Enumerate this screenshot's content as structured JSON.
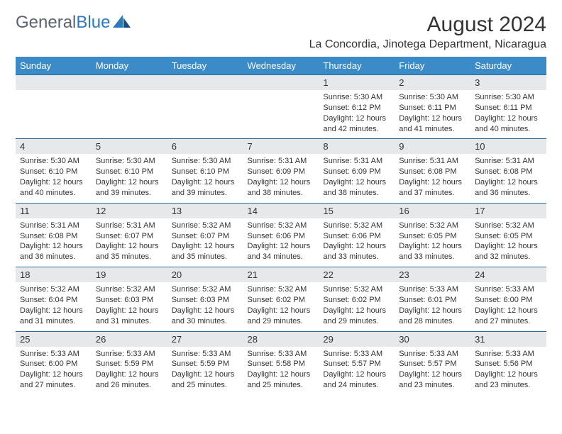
{
  "logo": {
    "text_gray": "General",
    "text_blue": "Blue"
  },
  "title": "August 2024",
  "location": "La Concordia, Jinotega Department, Nicaragua",
  "colors": {
    "header_bg": "#3b8bc8",
    "header_text": "#ffffff",
    "daynum_bg": "#e6e8ea",
    "daynum_border": "#2b6aa0",
    "body_text": "#333333",
    "logo_gray": "#5a6570",
    "logo_blue": "#2b7abf"
  },
  "day_headers": [
    "Sunday",
    "Monday",
    "Tuesday",
    "Wednesday",
    "Thursday",
    "Friday",
    "Saturday"
  ],
  "weeks": [
    [
      null,
      null,
      null,
      null,
      {
        "n": "1",
        "sr": "Sunrise: 5:30 AM",
        "ss": "Sunset: 6:12 PM",
        "dl": "Daylight: 12 hours and 42 minutes."
      },
      {
        "n": "2",
        "sr": "Sunrise: 5:30 AM",
        "ss": "Sunset: 6:11 PM",
        "dl": "Daylight: 12 hours and 41 minutes."
      },
      {
        "n": "3",
        "sr": "Sunrise: 5:30 AM",
        "ss": "Sunset: 6:11 PM",
        "dl": "Daylight: 12 hours and 40 minutes."
      }
    ],
    [
      {
        "n": "4",
        "sr": "Sunrise: 5:30 AM",
        "ss": "Sunset: 6:10 PM",
        "dl": "Daylight: 12 hours and 40 minutes."
      },
      {
        "n": "5",
        "sr": "Sunrise: 5:30 AM",
        "ss": "Sunset: 6:10 PM",
        "dl": "Daylight: 12 hours and 39 minutes."
      },
      {
        "n": "6",
        "sr": "Sunrise: 5:30 AM",
        "ss": "Sunset: 6:10 PM",
        "dl": "Daylight: 12 hours and 39 minutes."
      },
      {
        "n": "7",
        "sr": "Sunrise: 5:31 AM",
        "ss": "Sunset: 6:09 PM",
        "dl": "Daylight: 12 hours and 38 minutes."
      },
      {
        "n": "8",
        "sr": "Sunrise: 5:31 AM",
        "ss": "Sunset: 6:09 PM",
        "dl": "Daylight: 12 hours and 38 minutes."
      },
      {
        "n": "9",
        "sr": "Sunrise: 5:31 AM",
        "ss": "Sunset: 6:08 PM",
        "dl": "Daylight: 12 hours and 37 minutes."
      },
      {
        "n": "10",
        "sr": "Sunrise: 5:31 AM",
        "ss": "Sunset: 6:08 PM",
        "dl": "Daylight: 12 hours and 36 minutes."
      }
    ],
    [
      {
        "n": "11",
        "sr": "Sunrise: 5:31 AM",
        "ss": "Sunset: 6:08 PM",
        "dl": "Daylight: 12 hours and 36 minutes."
      },
      {
        "n": "12",
        "sr": "Sunrise: 5:31 AM",
        "ss": "Sunset: 6:07 PM",
        "dl": "Daylight: 12 hours and 35 minutes."
      },
      {
        "n": "13",
        "sr": "Sunrise: 5:32 AM",
        "ss": "Sunset: 6:07 PM",
        "dl": "Daylight: 12 hours and 35 minutes."
      },
      {
        "n": "14",
        "sr": "Sunrise: 5:32 AM",
        "ss": "Sunset: 6:06 PM",
        "dl": "Daylight: 12 hours and 34 minutes."
      },
      {
        "n": "15",
        "sr": "Sunrise: 5:32 AM",
        "ss": "Sunset: 6:06 PM",
        "dl": "Daylight: 12 hours and 33 minutes."
      },
      {
        "n": "16",
        "sr": "Sunrise: 5:32 AM",
        "ss": "Sunset: 6:05 PM",
        "dl": "Daylight: 12 hours and 33 minutes."
      },
      {
        "n": "17",
        "sr": "Sunrise: 5:32 AM",
        "ss": "Sunset: 6:05 PM",
        "dl": "Daylight: 12 hours and 32 minutes."
      }
    ],
    [
      {
        "n": "18",
        "sr": "Sunrise: 5:32 AM",
        "ss": "Sunset: 6:04 PM",
        "dl": "Daylight: 12 hours and 31 minutes."
      },
      {
        "n": "19",
        "sr": "Sunrise: 5:32 AM",
        "ss": "Sunset: 6:03 PM",
        "dl": "Daylight: 12 hours and 31 minutes."
      },
      {
        "n": "20",
        "sr": "Sunrise: 5:32 AM",
        "ss": "Sunset: 6:03 PM",
        "dl": "Daylight: 12 hours and 30 minutes."
      },
      {
        "n": "21",
        "sr": "Sunrise: 5:32 AM",
        "ss": "Sunset: 6:02 PM",
        "dl": "Daylight: 12 hours and 29 minutes."
      },
      {
        "n": "22",
        "sr": "Sunrise: 5:32 AM",
        "ss": "Sunset: 6:02 PM",
        "dl": "Daylight: 12 hours and 29 minutes."
      },
      {
        "n": "23",
        "sr": "Sunrise: 5:33 AM",
        "ss": "Sunset: 6:01 PM",
        "dl": "Daylight: 12 hours and 28 minutes."
      },
      {
        "n": "24",
        "sr": "Sunrise: 5:33 AM",
        "ss": "Sunset: 6:00 PM",
        "dl": "Daylight: 12 hours and 27 minutes."
      }
    ],
    [
      {
        "n": "25",
        "sr": "Sunrise: 5:33 AM",
        "ss": "Sunset: 6:00 PM",
        "dl": "Daylight: 12 hours and 27 minutes."
      },
      {
        "n": "26",
        "sr": "Sunrise: 5:33 AM",
        "ss": "Sunset: 5:59 PM",
        "dl": "Daylight: 12 hours and 26 minutes."
      },
      {
        "n": "27",
        "sr": "Sunrise: 5:33 AM",
        "ss": "Sunset: 5:59 PM",
        "dl": "Daylight: 12 hours and 25 minutes."
      },
      {
        "n": "28",
        "sr": "Sunrise: 5:33 AM",
        "ss": "Sunset: 5:58 PM",
        "dl": "Daylight: 12 hours and 25 minutes."
      },
      {
        "n": "29",
        "sr": "Sunrise: 5:33 AM",
        "ss": "Sunset: 5:57 PM",
        "dl": "Daylight: 12 hours and 24 minutes."
      },
      {
        "n": "30",
        "sr": "Sunrise: 5:33 AM",
        "ss": "Sunset: 5:57 PM",
        "dl": "Daylight: 12 hours and 23 minutes."
      },
      {
        "n": "31",
        "sr": "Sunrise: 5:33 AM",
        "ss": "Sunset: 5:56 PM",
        "dl": "Daylight: 12 hours and 23 minutes."
      }
    ]
  ]
}
